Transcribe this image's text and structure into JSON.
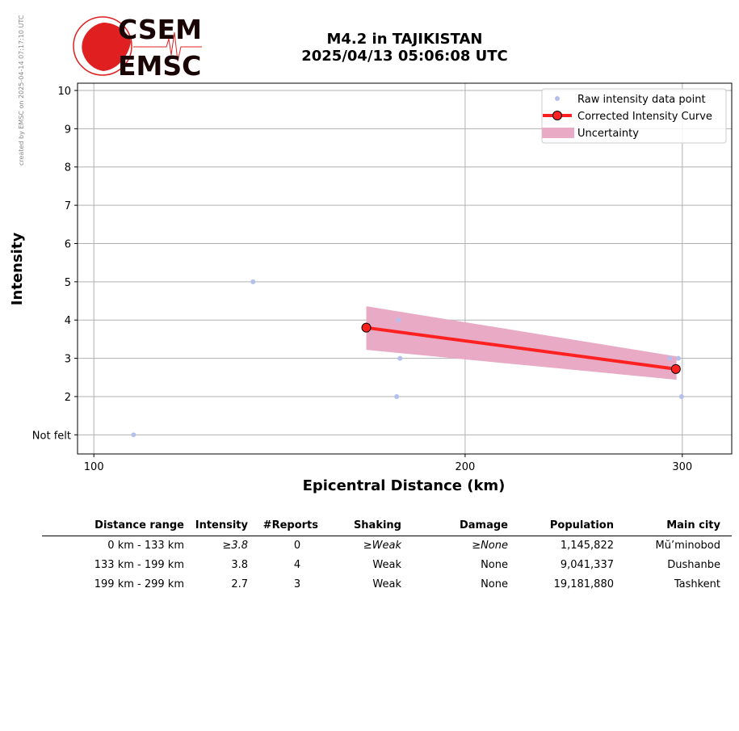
{
  "side_note": "created by EMSC on 2025-04-14 07:17:10 UTC",
  "logo": {
    "top": "CSEM",
    "bottom": "EMSC"
  },
  "title": {
    "line1": "M4.2 in TAJIKISTAN",
    "line2": "2025/04/13 05:06:08 UTC"
  },
  "chart_data": {
    "type": "scatter",
    "xscale": "log",
    "xlabel": "Epicentral Distance (km)",
    "ylabel": "Intensity",
    "xlim": [
      97,
      329
    ],
    "ylim": [
      0.5,
      10.19
    ],
    "xticks": [
      {
        "v": 100,
        "label": "100"
      },
      {
        "v": 200,
        "label": "200"
      },
      {
        "v": 300,
        "label": "300"
      }
    ],
    "yticks": [
      {
        "v": 1,
        "label": "Not felt"
      },
      {
        "v": 2,
        "label": "2"
      },
      {
        "v": 3,
        "label": "3"
      },
      {
        "v": 4,
        "label": "4"
      },
      {
        "v": 5,
        "label": "5"
      },
      {
        "v": 6,
        "label": "6"
      },
      {
        "v": 7,
        "label": "7"
      },
      {
        "v": 8,
        "label": "8"
      },
      {
        "v": 9,
        "label": "9"
      },
      {
        "v": 10,
        "label": "10"
      }
    ],
    "grid": true,
    "legend_position": "top-right",
    "legend": [
      "Raw intensity data point",
      "Corrected Intensity Curve",
      "Uncertainty"
    ],
    "raw_points": [
      [
        107.7,
        1
      ],
      [
        134.6,
        5
      ],
      [
        176.6,
        4
      ],
      [
        177.1,
        3
      ],
      [
        176,
        2
      ],
      [
        293,
        3
      ],
      [
        297.8,
        3
      ],
      [
        299.6,
        2
      ]
    ],
    "curve": [
      [
        166.3,
        3.8
      ],
      [
        296.4,
        2.72
      ]
    ],
    "uncertainty": {
      "x": [
        166.3,
        296.8
      ],
      "upper": [
        4.36,
        3.05
      ],
      "lower": [
        3.22,
        2.44
      ]
    },
    "colors": {
      "raw": "#b4bfec",
      "curve": "#ff2020",
      "band": "#e8aac4"
    }
  },
  "table": {
    "headers": [
      "Distance range",
      "Intensity",
      "#Reports",
      "Shaking",
      "Damage",
      "Population",
      "Main city"
    ],
    "rows": [
      {
        "range": "0 km -  133 km",
        "intensity": "≥3.8",
        "reports": "0",
        "shaking": "≥Weak",
        "damage": "≥None",
        "population": "1,145,822",
        "city": "Mŭ’minobod",
        "italic": true
      },
      {
        "range": "133 km -  199 km",
        "intensity": "3.8",
        "reports": "4",
        "shaking": "Weak",
        "damage": "None",
        "population": "9,041,337",
        "city": "Dushanbe",
        "italic": false
      },
      {
        "range": "199 km -  299 km",
        "intensity": "2.7",
        "reports": "3",
        "shaking": "Weak",
        "damage": "None",
        "population": "19,181,880",
        "city": "Tashkent",
        "italic": false
      }
    ]
  }
}
